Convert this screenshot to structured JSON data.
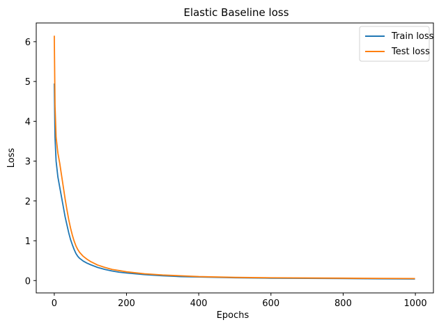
{
  "chart_data": {
    "type": "line",
    "title": "Elastic Baseline loss",
    "xlabel": "Epochs",
    "ylabel": "Loss",
    "xlim": [
      -50,
      1050
    ],
    "ylim": [
      -0.31,
      6.47
    ],
    "xticks": [
      0,
      200,
      400,
      600,
      800,
      1000
    ],
    "yticks": [
      0,
      1,
      2,
      3,
      4,
      5,
      6
    ],
    "grid": false,
    "legend_position": "top-right",
    "series": [
      {
        "name": "Train loss",
        "color": "#1f77b4",
        "x": [
          0,
          2,
          5,
          10,
          15,
          20,
          25,
          30,
          35,
          40,
          45,
          50,
          55,
          60,
          65,
          70,
          80,
          90,
          100,
          120,
          140,
          160,
          180,
          200,
          250,
          300,
          350,
          400,
          500,
          600,
          700,
          800,
          900,
          999
        ],
        "y": [
          4.95,
          3.6,
          3.0,
          2.6,
          2.35,
          2.1,
          1.85,
          1.6,
          1.4,
          1.2,
          1.03,
          0.9,
          0.78,
          0.68,
          0.61,
          0.56,
          0.49,
          0.44,
          0.4,
          0.33,
          0.28,
          0.24,
          0.21,
          0.19,
          0.15,
          0.12,
          0.1,
          0.09,
          0.07,
          0.06,
          0.055,
          0.05,
          0.045,
          0.04
        ]
      },
      {
        "name": "Test loss",
        "color": "#ff7f0e",
        "x": [
          0,
          2,
          5,
          10,
          15,
          20,
          25,
          30,
          35,
          40,
          45,
          50,
          55,
          60,
          65,
          70,
          80,
          90,
          100,
          120,
          140,
          160,
          180,
          200,
          250,
          300,
          350,
          400,
          500,
          600,
          700,
          800,
          900,
          999
        ],
        "y": [
          6.15,
          4.4,
          3.6,
          3.2,
          2.95,
          2.65,
          2.35,
          2.05,
          1.78,
          1.53,
          1.32,
          1.14,
          0.99,
          0.87,
          0.78,
          0.71,
          0.61,
          0.54,
          0.48,
          0.39,
          0.33,
          0.28,
          0.25,
          0.22,
          0.17,
          0.14,
          0.12,
          0.1,
          0.08,
          0.07,
          0.065,
          0.06,
          0.055,
          0.05
        ]
      }
    ]
  }
}
